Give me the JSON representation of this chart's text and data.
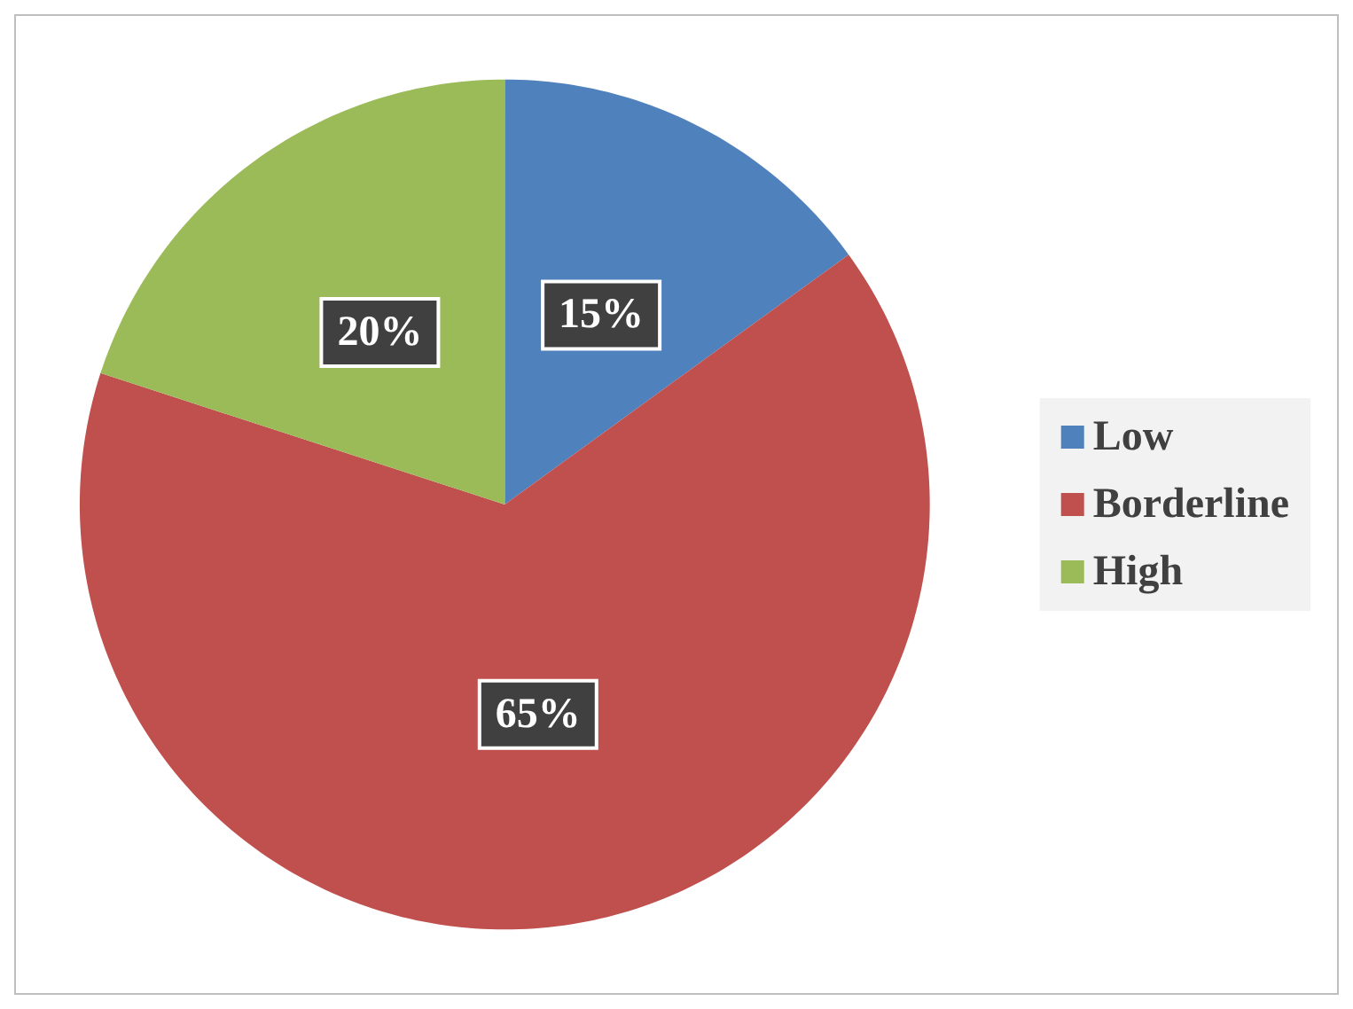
{
  "chart_data": {
    "type": "pie",
    "categories": [
      "Low",
      "Borderline",
      "High"
    ],
    "values": [
      15,
      65,
      20
    ],
    "colors": [
      "#4f81bd",
      "#c0504d",
      "#9bbb59"
    ],
    "value_labels": [
      "15%",
      "65%",
      "20%"
    ],
    "legend": "right"
  }
}
